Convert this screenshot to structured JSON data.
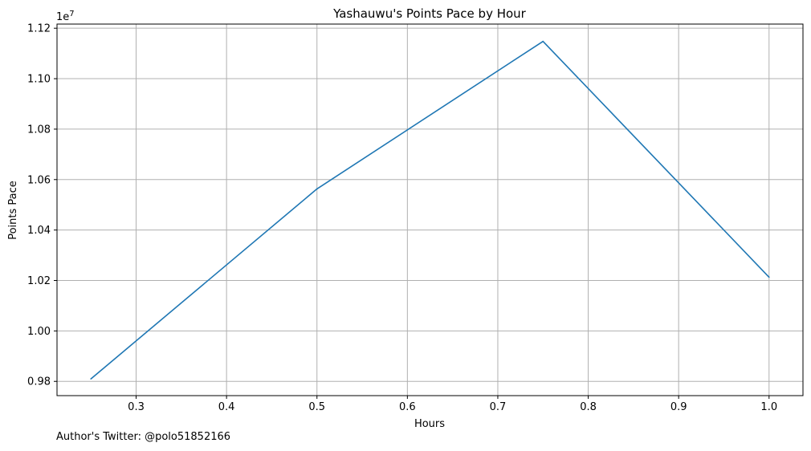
{
  "chart_data": {
    "type": "line",
    "title": "Yashauwu's Points Pace by Hour",
    "xlabel": "Hours",
    "ylabel": "Points Pace",
    "y_multiplier_label": "1e7",
    "xlim": [
      0.2125,
      1.0375
    ],
    "ylim": [
      9.7435,
      11.2165
    ],
    "x_ticks": [
      0.3,
      0.4,
      0.5,
      0.6,
      0.7,
      0.8,
      0.9,
      1.0
    ],
    "x_tick_labels": [
      "0.3",
      "0.4",
      "0.5",
      "0.6",
      "0.7",
      "0.8",
      "0.9",
      "1.0"
    ],
    "y_ticks": [
      9.8,
      10.0,
      10.2,
      10.4,
      10.6,
      10.8,
      11.0,
      11.2
    ],
    "y_tick_labels": [
      "0.98",
      "1.00",
      "1.02",
      "1.04",
      "1.06",
      "1.08",
      "1.10",
      "1.12"
    ],
    "grid": true,
    "line_color": "#1f77b4",
    "grid_color": "#b0b0b0",
    "series": [
      {
        "x": [
          0.25,
          0.5,
          0.75,
          1.0
        ],
        "values": [
          9.81,
          10.563,
          11.148,
          10.213
        ]
      }
    ]
  },
  "footnote": "Author's Twitter: @polo51852166"
}
